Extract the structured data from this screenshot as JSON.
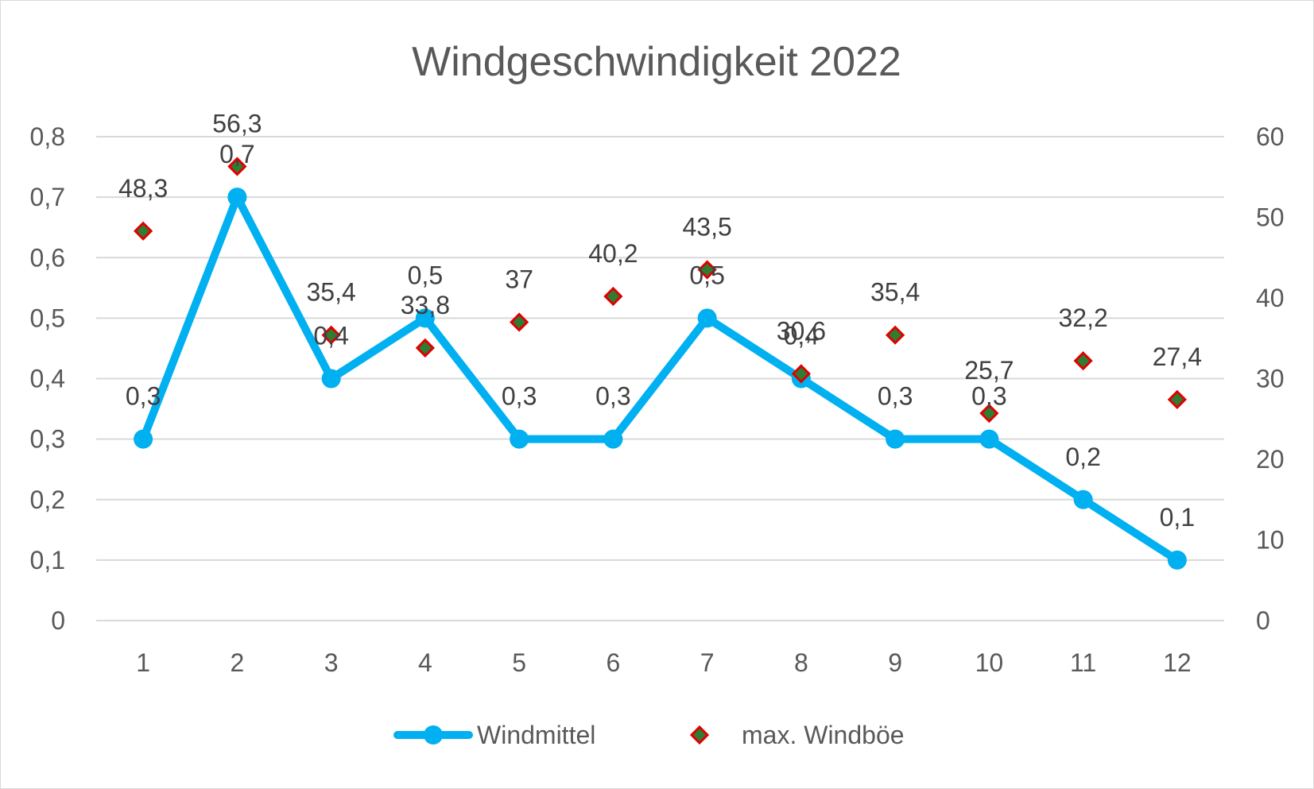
{
  "chart_data": {
    "type": "line",
    "title": "Windgeschwindigkeit 2022",
    "categories": [
      "1",
      "2",
      "3",
      "4",
      "5",
      "6",
      "7",
      "8",
      "9",
      "10",
      "11",
      "12"
    ],
    "series": [
      {
        "name": "Windmittel",
        "type": "line",
        "axis": "left",
        "color": "#00B0F0",
        "marker": "circle",
        "values": [
          0.3,
          0.7,
          0.4,
          0.5,
          0.3,
          0.3,
          0.5,
          0.4,
          0.3,
          0.3,
          0.2,
          0.1
        ],
        "labels": [
          "0,3",
          "0,7",
          "0,4",
          "0,5",
          "0,3",
          "0,3",
          "0,5",
          "0,4",
          "0,3",
          "0,3",
          "0,2",
          "0,1"
        ]
      },
      {
        "name": "max. Windböe",
        "type": "scatter",
        "axis": "right",
        "color": "#E00000",
        "fill": "#2E7D32",
        "marker": "diamond",
        "values": [
          48.3,
          56.3,
          35.4,
          33.8,
          37,
          40.2,
          43.5,
          30.6,
          35.4,
          25.7,
          32.2,
          27.4
        ],
        "labels": [
          "48,3",
          "56,3",
          "35,4",
          "33,8",
          "37",
          "40,2",
          "43,5",
          "30,6",
          "35,4",
          "25,7",
          "32,2",
          "27,4"
        ]
      }
    ],
    "y_left": {
      "range": [
        0,
        0.8
      ],
      "ticks": [
        0,
        0.1,
        0.2,
        0.3,
        0.4,
        0.5,
        0.6,
        0.7,
        0.8
      ],
      "tick_labels": [
        "0",
        "0,1",
        "0,2",
        "0,3",
        "0,4",
        "0,5",
        "0,6",
        "0,7",
        "0,8"
      ]
    },
    "y_right": {
      "range": [
        0,
        60
      ],
      "ticks": [
        0,
        10,
        20,
        30,
        40,
        50,
        60
      ],
      "tick_labels": [
        "0",
        "10",
        "20",
        "30",
        "40",
        "50",
        "60"
      ]
    },
    "grid": true,
    "legend_position": "bottom"
  }
}
